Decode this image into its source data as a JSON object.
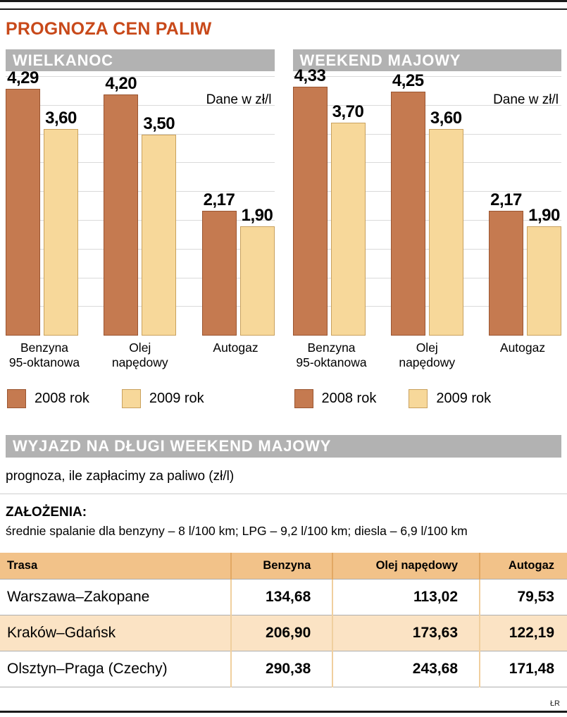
{
  "title": "PROGNOZA CEN PALIW",
  "credit": "ŁR",
  "colors": {
    "title_accent": "#c8491a",
    "section_header_bg": "#b2b2b2",
    "bar_2008": "#c57a50",
    "bar_2009": "#f7d89a",
    "table_header_bg": "#f2c289",
    "table_alt_row_bg": "#fbe3c4"
  },
  "chart_data": [
    {
      "type": "bar",
      "title": "WIELKANOC",
      "unit_label": "Dane w zł/l",
      "categories": [
        [
          "Benzyna",
          "95-oktanowa"
        ],
        [
          "Olej",
          "napędowy"
        ],
        [
          "Autogaz"
        ]
      ],
      "series": [
        {
          "name": "2008 rok",
          "color": "#c57a50",
          "border": "#9a5531",
          "values": [
            4.29,
            4.2,
            2.17
          ]
        },
        {
          "name": "2009 rok",
          "color": "#f7d89a",
          "border": "#c9a15e",
          "values": [
            3.6,
            3.5,
            1.9
          ]
        }
      ],
      "ylim": [
        0,
        4.6
      ],
      "grid_step": 0.5,
      "grid": true,
      "legend_position": "bottom"
    },
    {
      "type": "bar",
      "title": "WEEKEND MAJOWY",
      "unit_label": "Dane w zł/l",
      "categories": [
        [
          "Benzyna",
          "95-oktanowa"
        ],
        [
          "Olej",
          "napędowy"
        ],
        [
          "Autogaz"
        ]
      ],
      "series": [
        {
          "name": "2008 rok",
          "color": "#c57a50",
          "border": "#9a5531",
          "values": [
            4.33,
            4.25,
            2.17
          ]
        },
        {
          "name": "2009 rok",
          "color": "#f7d89a",
          "border": "#c9a15e",
          "values": [
            3.7,
            3.6,
            1.9
          ]
        }
      ],
      "ylim": [
        0,
        4.6
      ],
      "grid_step": 0.5,
      "grid": true,
      "legend_position": "bottom"
    }
  ],
  "table_section": {
    "title": "WYJAZD NA DŁUGI WEEKEND MAJOWY",
    "subtitle": "prognoza, ile zapłacimy za paliwo (zł/l)",
    "assumptions_label": "ZAŁOŻENIA:",
    "assumptions_text": "średnie spalanie dla benzyny – 8 l/100 km; LPG – 9,2 l/100 km; diesla – 6,9 l/100 km",
    "table": {
      "columns": [
        "Trasa",
        "Benzyna",
        "Olej napędowy",
        "Autogaz"
      ],
      "rows": [
        [
          "Warszawa–Zakopane",
          "134,68",
          "113,02",
          "79,53"
        ],
        [
          "Kraków–Gdańsk",
          "206,90",
          "173,63",
          "122,19"
        ],
        [
          "Olsztyn–Praga (Czechy)",
          "290,38",
          "243,68",
          "171,48"
        ]
      ]
    }
  }
}
